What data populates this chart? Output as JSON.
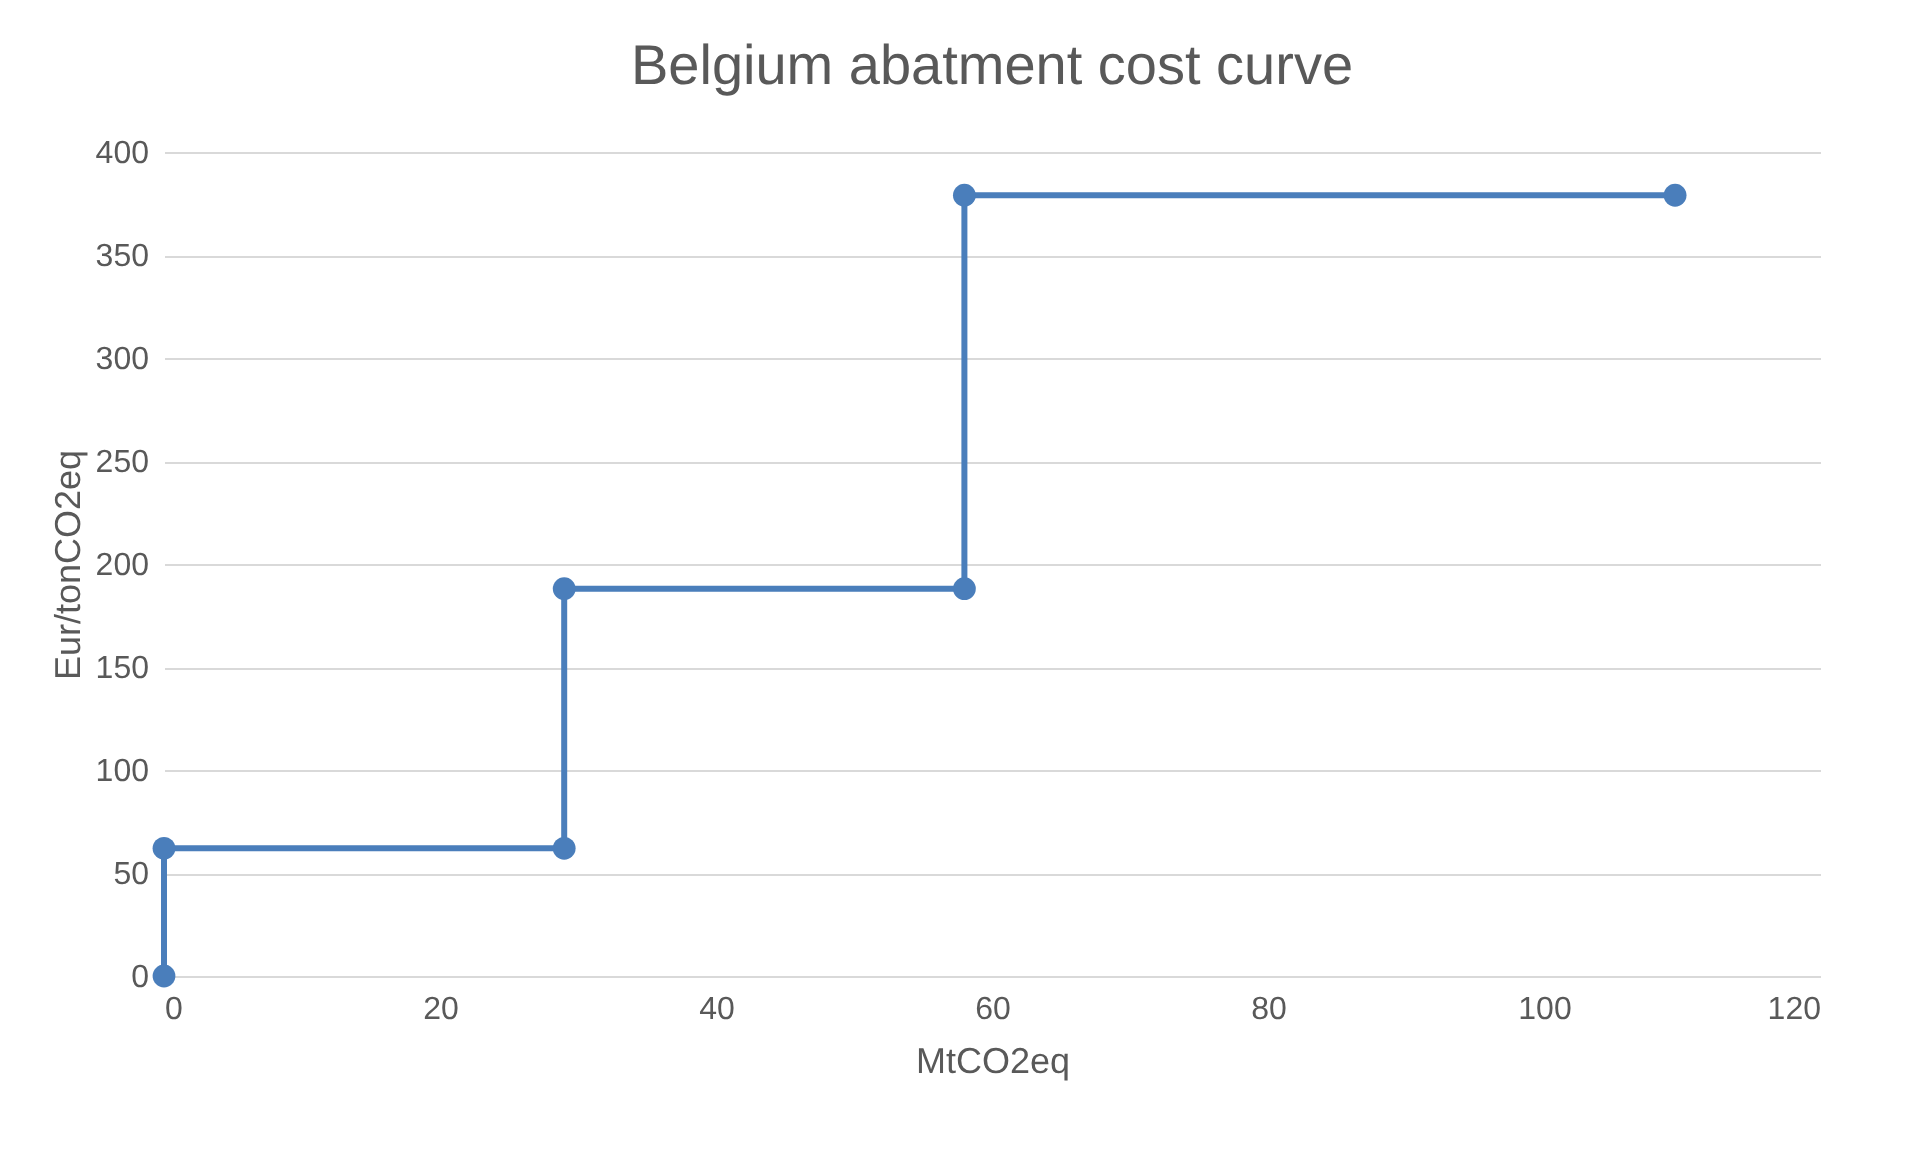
{
  "chart_data": {
    "type": "line",
    "title": "Belgium abatment cost curve",
    "xlabel": "MtCO2eq",
    "ylabel": "Eur/tonCO2eq",
    "x": [
      0,
      0,
      29,
      29,
      58,
      58,
      109.5
    ],
    "series": [
      {
        "color": "#4a7ebb",
        "values": [
          0,
          62,
          62,
          188,
          188,
          379,
          379
        ]
      }
    ],
    "xlim": [
      0,
      120
    ],
    "xticks": [
      0,
      20,
      40,
      60,
      80,
      100,
      120
    ],
    "ylim": [
      0,
      400
    ],
    "yticks": [
      0,
      50,
      100,
      150,
      200,
      250,
      300,
      350,
      400
    ],
    "grid": "y",
    "marker": "circle",
    "line_style": "solid"
  }
}
